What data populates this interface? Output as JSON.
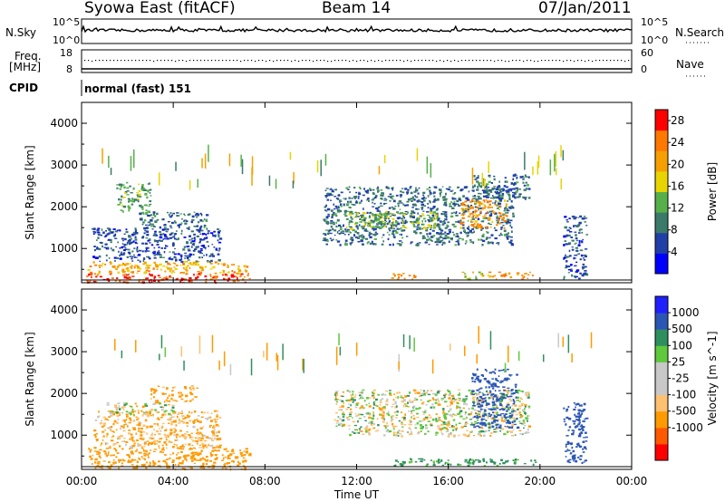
{
  "header": {
    "station": "Syowa East (fitACF)",
    "beam": "Beam 14",
    "date": "07/Jan/2011"
  },
  "top_panels": {
    "nsky_label": "N.Sky",
    "nsky_ticks": [
      "10^5",
      "10^0"
    ],
    "nsearch_label": "N.Search",
    "nsearch_ticks": [
      "10^5",
      "10^0"
    ],
    "freq_label_1": "Freq.",
    "freq_label_2": "[MHz]",
    "freq_ticks": [
      "18",
      "8"
    ],
    "nave_label": "Nave",
    "nave_ticks": [
      "60",
      "0"
    ],
    "cpid_label": "CPID",
    "cpid_value": "normal (fast) 151"
  },
  "colors": {
    "power_scale": [
      "#0000ff",
      "#2040a8",
      "#3a7a6a",
      "#56b04a",
      "#e8d400",
      "#f5a000",
      "#ff7800",
      "#ff0000"
    ],
    "velocity_scale": [
      "#ff0000",
      "#ff5a00",
      "#ff9a00",
      "#ffc070",
      "#c8c8c8",
      "#c8c8c8",
      "#5fc83c",
      "#2e8f5e",
      "#2c56b4",
      "#2020ff"
    ]
  },
  "chart_data": [
    {
      "type": "heatmap",
      "panel": "power",
      "ylabel": "Slant Range [km]",
      "yticks": [
        "1000",
        "2000",
        "3000",
        "4000"
      ],
      "ylim": [
        180,
        4500
      ],
      "xlim": [
        0,
        24
      ],
      "colorbar_label": "Power [dB]",
      "colorbar_ticks": [
        "4",
        "8",
        "12",
        "16",
        "20",
        "24",
        "28"
      ],
      "colorbar_range": [
        0,
        30
      ],
      "regions": [
        {
          "t0": 0.2,
          "t1": 7.3,
          "r0": 200,
          "r1": 420,
          "value": 26
        },
        {
          "t0": 0.2,
          "t1": 7.3,
          "r0": 420,
          "r1": 700,
          "value": 20
        },
        {
          "t0": 0.4,
          "t1": 6.0,
          "r0": 700,
          "r1": 1500,
          "value": 6
        },
        {
          "t0": 2.5,
          "t1": 5.5,
          "r0": 1500,
          "r1": 1900,
          "value": 8
        },
        {
          "t0": 1.5,
          "t1": 3.0,
          "r0": 1900,
          "r1": 2600,
          "value": 12
        },
        {
          "t0": 10.5,
          "t1": 18.8,
          "r0": 1100,
          "r1": 2500,
          "value": 8
        },
        {
          "t0": 11.5,
          "t1": 15.5,
          "r0": 1500,
          "r1": 1900,
          "value": 14
        },
        {
          "t0": 16.5,
          "t1": 18.5,
          "r0": 1500,
          "r1": 2200,
          "value": 22
        },
        {
          "t0": 17.0,
          "t1": 19.5,
          "r0": 2200,
          "r1": 2800,
          "value": 8
        },
        {
          "t0": 13.5,
          "t1": 14.5,
          "r0": 280,
          "r1": 450,
          "value": 22
        },
        {
          "t0": 16.5,
          "t1": 17.5,
          "r0": 280,
          "r1": 450,
          "value": 16
        },
        {
          "t0": 17.7,
          "t1": 19.7,
          "r0": 280,
          "r1": 450,
          "value": 22
        },
        {
          "t0": 21.0,
          "t1": 22.0,
          "r0": 300,
          "r1": 1800,
          "value": 6
        }
      ]
    },
    {
      "type": "heatmap",
      "panel": "velocity",
      "ylabel": "Slant Range [km]",
      "yticks": [
        "1000",
        "2000",
        "3000",
        "4000"
      ],
      "ylim": [
        180,
        4500
      ],
      "xlim": [
        0,
        24
      ],
      "xticks": [
        "00:00",
        "04:00",
        "08:00",
        "12:00",
        "16:00",
        "20:00",
        "00:00"
      ],
      "xlabel": "Time UT",
      "colorbar_label": "Velocity [m s^-1]",
      "colorbar_ticks": [
        "1000",
        "500",
        "100",
        "25",
        "-25",
        "-100",
        "-500",
        "-1000"
      ],
      "regions": [
        {
          "t0": 0.2,
          "t1": 7.3,
          "r0": 200,
          "r1": 700,
          "value": -300
        },
        {
          "t0": 0.5,
          "t1": 6.0,
          "r0": 700,
          "r1": 1600,
          "value": -150
        },
        {
          "t0": 1.0,
          "t1": 4.0,
          "r0": 1500,
          "r1": 1800,
          "value": 0
        },
        {
          "t0": 3.0,
          "t1": 5.0,
          "r0": 1800,
          "r1": 2200,
          "value": -200
        },
        {
          "t0": 11.0,
          "t1": 19.5,
          "r0": 1200,
          "r1": 2100,
          "value": 0
        },
        {
          "t0": 11.5,
          "t1": 19.5,
          "r0": 1000,
          "r1": 1200,
          "value": 0
        },
        {
          "t0": 17.0,
          "t1": 19.0,
          "r0": 1200,
          "r1": 2600,
          "value": 800
        },
        {
          "t0": 13.5,
          "t1": 19.8,
          "r0": 280,
          "r1": 450,
          "value": 200
        },
        {
          "t0": 21.0,
          "t1": 22.0,
          "r0": 300,
          "r1": 1800,
          "value": 800
        }
      ]
    }
  ]
}
